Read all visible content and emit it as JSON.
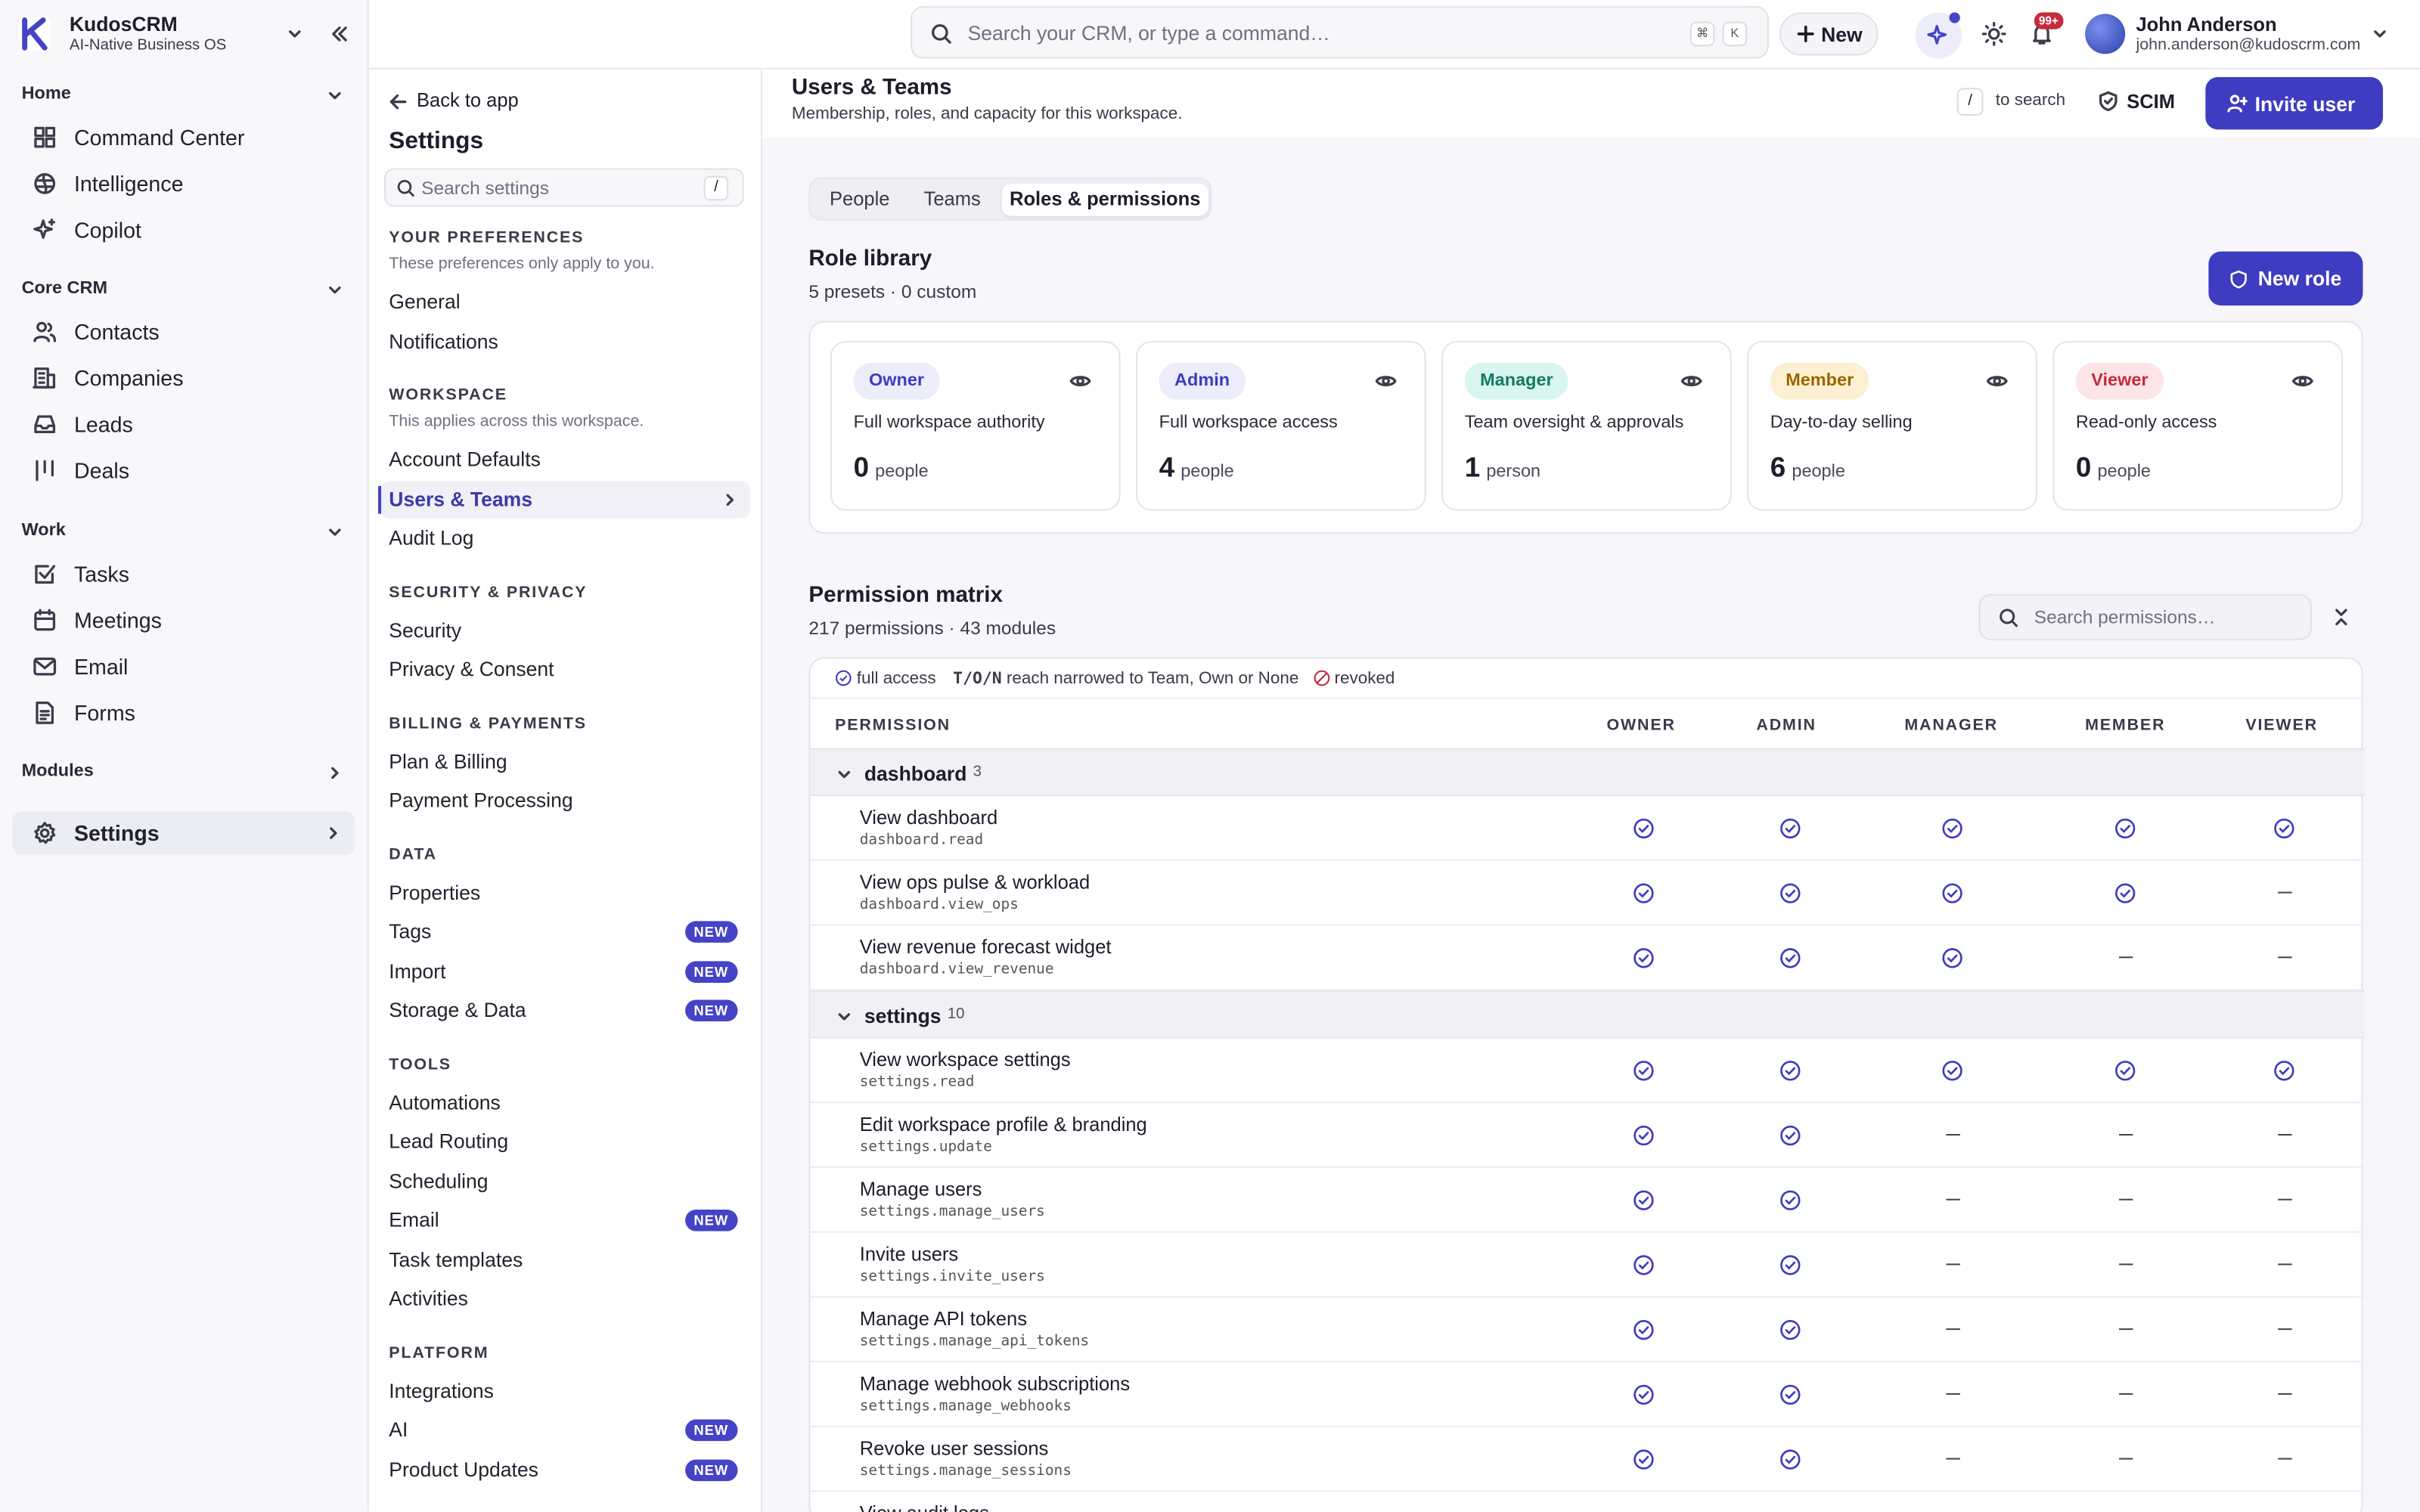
{
  "brand": {
    "name": "KudosCRM",
    "subtitle": "AI-Native Business OS"
  },
  "sidebar": {
    "sections": [
      {
        "title": "Home",
        "items": [
          {
            "label": "Command Center",
            "icon": "grid-icon"
          },
          {
            "label": "Intelligence",
            "icon": "brain-icon"
          },
          {
            "label": "Copilot",
            "icon": "sparkles-icon"
          }
        ]
      },
      {
        "title": "Core CRM",
        "items": [
          {
            "label": "Contacts",
            "icon": "users-icon"
          },
          {
            "label": "Companies",
            "icon": "building-icon"
          },
          {
            "label": "Leads",
            "icon": "inbox-icon"
          },
          {
            "label": "Deals",
            "icon": "kanban-icon"
          }
        ]
      },
      {
        "title": "Work",
        "items": [
          {
            "label": "Tasks",
            "icon": "checkbox-icon"
          },
          {
            "label": "Meetings",
            "icon": "calendar-icon"
          },
          {
            "label": "Email",
            "icon": "mail-icon"
          },
          {
            "label": "Forms",
            "icon": "form-icon"
          }
        ]
      }
    ],
    "modules": "Modules",
    "settings": "Settings"
  },
  "topbar": {
    "search_placeholder": "Search your CRM, or type a command…",
    "kbd1": "⌘",
    "kbd2": "K",
    "new_label": "New",
    "notif_count": "99+",
    "user_name": "John Anderson",
    "user_email": "john.anderson@kudoscrm.com"
  },
  "settings_nav": {
    "back": "Back to app",
    "title": "Settings",
    "search_placeholder": "Search settings",
    "search_kbd": "/",
    "sections": [
      {
        "title": "YOUR PREFERENCES",
        "desc": "These preferences only apply to you.",
        "items": [
          {
            "label": "General"
          },
          {
            "label": "Notifications"
          }
        ]
      },
      {
        "title": "WORKSPACE",
        "desc": "This applies across this workspace.",
        "items": [
          {
            "label": "Account Defaults"
          },
          {
            "label": "Users & Teams",
            "active": true
          },
          {
            "label": "Audit Log"
          }
        ]
      },
      {
        "title": "SECURITY & PRIVACY",
        "items": [
          {
            "label": "Security"
          },
          {
            "label": "Privacy & Consent"
          }
        ]
      },
      {
        "title": "BILLING & PAYMENTS",
        "items": [
          {
            "label": "Plan & Billing"
          },
          {
            "label": "Payment Processing"
          }
        ]
      },
      {
        "title": "DATA",
        "items": [
          {
            "label": "Properties"
          },
          {
            "label": "Tags",
            "badge": "NEW"
          },
          {
            "label": "Import",
            "badge": "NEW"
          },
          {
            "label": "Storage & Data",
            "badge": "NEW"
          }
        ]
      },
      {
        "title": "TOOLS",
        "items": [
          {
            "label": "Automations"
          },
          {
            "label": "Lead Routing"
          },
          {
            "label": "Scheduling"
          },
          {
            "label": "Email",
            "badge": "NEW"
          },
          {
            "label": "Task templates"
          },
          {
            "label": "Activities"
          }
        ]
      },
      {
        "title": "PLATFORM",
        "items": [
          {
            "label": "Integrations"
          },
          {
            "label": "AI",
            "badge": "NEW"
          },
          {
            "label": "Product Updates",
            "badge": "NEW"
          }
        ]
      }
    ]
  },
  "page": {
    "title": "Users & Teams",
    "subtitle": "Membership, roles, and capacity for this workspace.",
    "search_kbd": "/",
    "search_hint": "to search",
    "scim": "SCIM",
    "invite": "Invite user",
    "tabs": [
      "People",
      "Teams",
      "Roles & permissions"
    ],
    "role_library": {
      "title": "Role library",
      "subtitle": "5 presets · 0 custom",
      "new_role": "New role",
      "roles": [
        {
          "name": "Owner",
          "desc": "Full workspace authority",
          "count": "0",
          "unit": "people",
          "bg": "#ececfb",
          "fg": "#3e3cc1"
        },
        {
          "name": "Admin",
          "desc": "Full workspace access",
          "count": "4",
          "unit": "people",
          "bg": "#ececfb",
          "fg": "#3e3cc1"
        },
        {
          "name": "Manager",
          "desc": "Team oversight & approvals",
          "count": "1",
          "unit": "person",
          "bg": "#d9f5ef",
          "fg": "#137a63"
        },
        {
          "name": "Member",
          "desc": "Day-to-day selling",
          "count": "6",
          "unit": "people",
          "bg": "#fdf0d2",
          "fg": "#9a6700"
        },
        {
          "name": "Viewer",
          "desc": "Read-only access",
          "count": "0",
          "unit": "people",
          "bg": "#fde4e7",
          "fg": "#c42b3b"
        }
      ]
    },
    "matrix": {
      "title": "Permission matrix",
      "subtitle": "217 permissions · 43 modules",
      "search_placeholder": "Search permissions…",
      "legend": {
        "full": "full access",
        "tonl": "T/O/N",
        "ton": "reach narrowed to Team, Own or None",
        "revoked": "revoked"
      },
      "columns": [
        "PERMISSION",
        "OWNER",
        "ADMIN",
        "MANAGER",
        "MEMBER",
        "VIEWER"
      ],
      "groups": [
        {
          "name": "dashboard",
          "count": "3",
          "rows": [
            {
              "name": "View dashboard",
              "key": "dashboard.read",
              "access": [
                1,
                1,
                1,
                1,
                1
              ]
            },
            {
              "name": "View ops pulse & workload",
              "key": "dashboard.view_ops",
              "access": [
                1,
                1,
                1,
                1,
                0
              ]
            },
            {
              "name": "View revenue forecast widget",
              "key": "dashboard.view_revenue",
              "access": [
                1,
                1,
                1,
                0,
                0
              ]
            }
          ]
        },
        {
          "name": "settings",
          "count": "10",
          "rows": [
            {
              "name": "View workspace settings",
              "key": "settings.read",
              "access": [
                1,
                1,
                1,
                1,
                1
              ]
            },
            {
              "name": "Edit workspace profile & branding",
              "key": "settings.update",
              "access": [
                1,
                1,
                0,
                0,
                0
              ]
            },
            {
              "name": "Manage users",
              "key": "settings.manage_users",
              "access": [
                1,
                1,
                0,
                0,
                0
              ]
            },
            {
              "name": "Invite users",
              "key": "settings.invite_users",
              "access": [
                1,
                1,
                0,
                0,
                0
              ]
            },
            {
              "name": "Manage API tokens",
              "key": "settings.manage_api_tokens",
              "access": [
                1,
                1,
                0,
                0,
                0
              ]
            },
            {
              "name": "Manage webhook subscriptions",
              "key": "settings.manage_webhooks",
              "access": [
                1,
                1,
                0,
                0,
                0
              ]
            },
            {
              "name": "Revoke user sessions",
              "key": "settings.manage_sessions",
              "access": [
                1,
                1,
                0,
                0,
                0
              ]
            },
            {
              "name": "View audit logs",
              "key": "",
              "access": []
            }
          ]
        }
      ]
    }
  }
}
